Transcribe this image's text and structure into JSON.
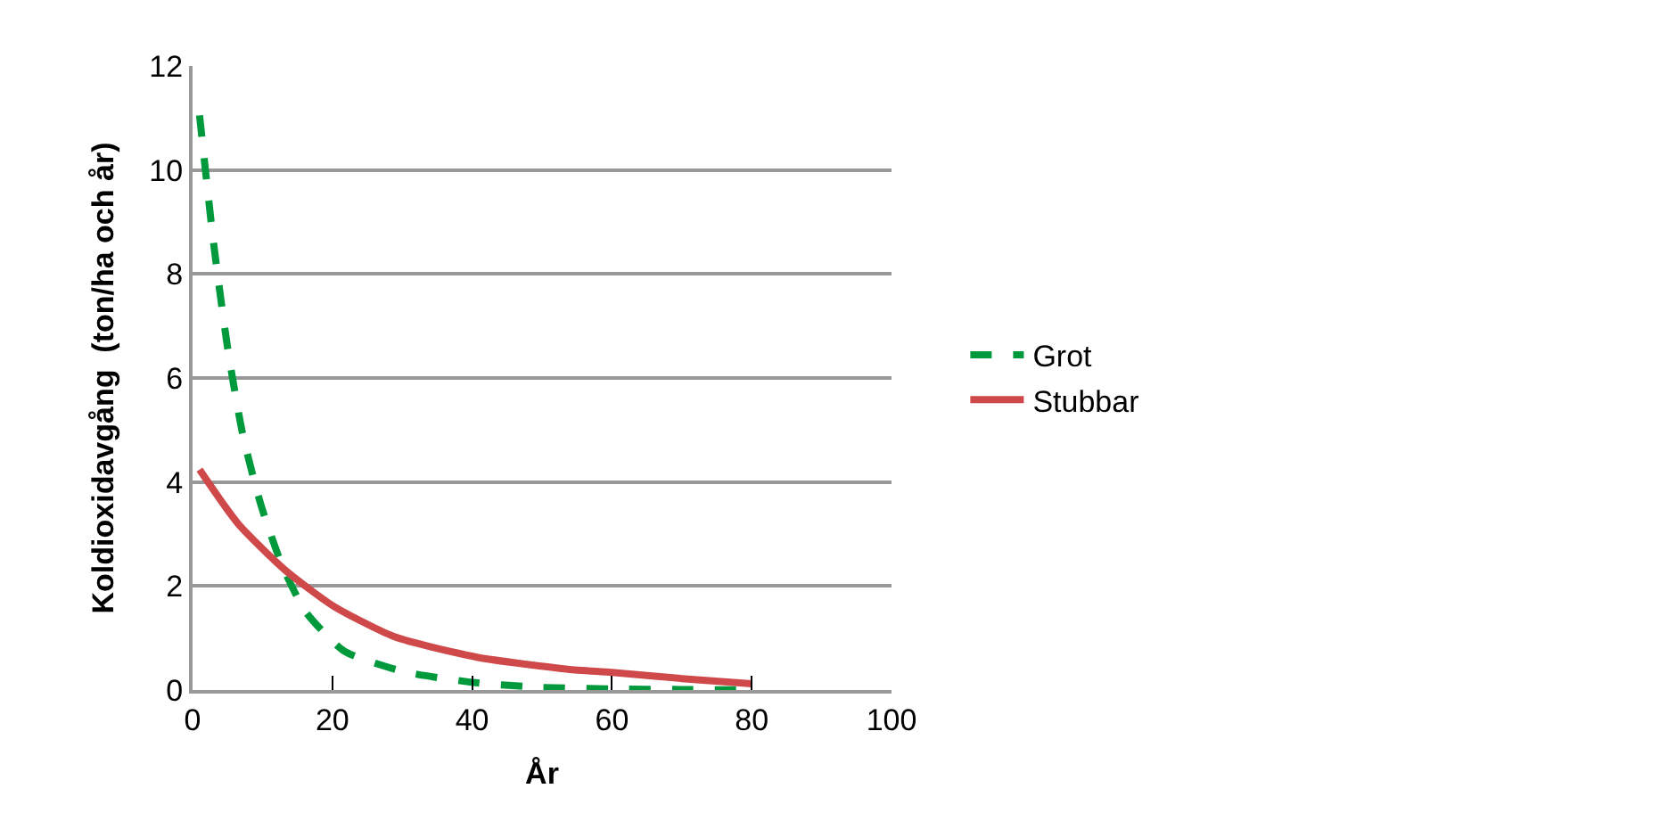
{
  "chart_data": {
    "type": "line",
    "xlabel": "År",
    "ylabel": "Koldioxidavgång  (ton/ha och år)",
    "xlim": [
      0,
      100
    ],
    "xticks": [
      0,
      20,
      40,
      60,
      80,
      100
    ],
    "ylim": [
      0,
      12
    ],
    "yticks": [
      0,
      2,
      4,
      6,
      8,
      10,
      12
    ],
    "grid": "y",
    "legend": "right",
    "marker": "none",
    "series": [
      {
        "name": "Grot",
        "color": "#009a3d",
        "line_style": "dashed",
        "x": [
          1,
          3,
          5.1,
          7.2,
          9.8,
          12.8,
          16.2,
          21.7,
          30.3,
          40.5,
          50,
          60,
          70,
          80
        ],
        "values": [
          11.05,
          8.6,
          6.5,
          4.9,
          3.55,
          2.4,
          1.5,
          0.75,
          0.35,
          0.14,
          0.05,
          0.02,
          0.01,
          0
        ]
      },
      {
        "name": "Stubbar",
        "color": "#d0494a",
        "line_style": "solid",
        "x": [
          1,
          6.5,
          13.3,
          20.2,
          28.8,
          40.7,
          53.7,
          60,
          70,
          80
        ],
        "values": [
          4.24,
          3.2,
          2.3,
          1.61,
          1.03,
          0.63,
          0.4,
          0.34,
          0.22,
          0.12
        ]
      }
    ]
  }
}
